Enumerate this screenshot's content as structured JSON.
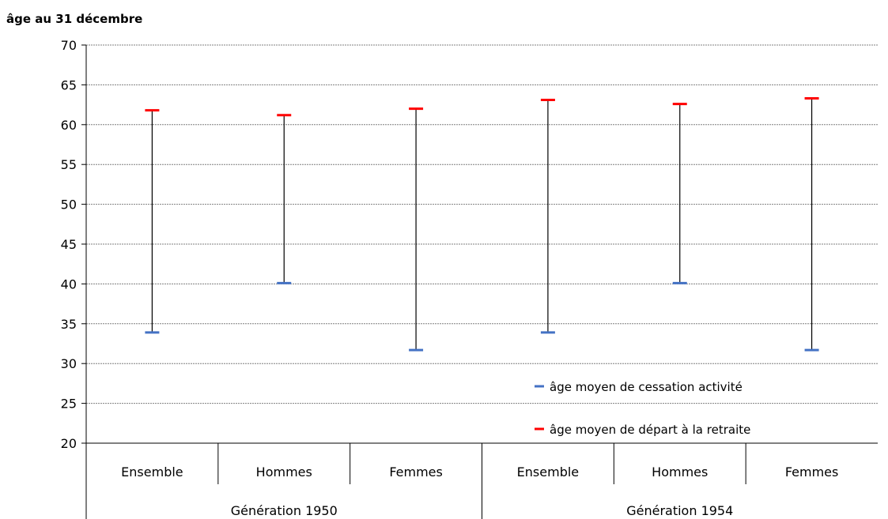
{
  "chart_data": {
    "type": "range",
    "ylabel": "âge au 31 décembre",
    "ylim": [
      20,
      70
    ],
    "yticks": [
      20,
      25,
      30,
      35,
      40,
      45,
      50,
      55,
      60,
      65,
      70
    ],
    "grid": true,
    "groups": [
      {
        "label": "Génération 1950",
        "categories": [
          "Ensemble",
          "Hommes",
          "Femmes"
        ]
      },
      {
        "label": "Génération 1954",
        "categories": [
          "Ensemble",
          "Hommes",
          "Femmes"
        ]
      }
    ],
    "series": [
      {
        "name": "âge moyen de cessation activité",
        "color": "#4472C4",
        "values": [
          33.9,
          40.1,
          31.7,
          33.9,
          40.1,
          31.7
        ]
      },
      {
        "name": "âge moyen de départ à la retraite",
        "color": "#FF0000",
        "values": [
          61.8,
          61.2,
          62.0,
          63.1,
          62.6,
          63.3
        ]
      }
    ],
    "range_line_color": "#000000",
    "legend_position": "inside-bottom-right"
  }
}
